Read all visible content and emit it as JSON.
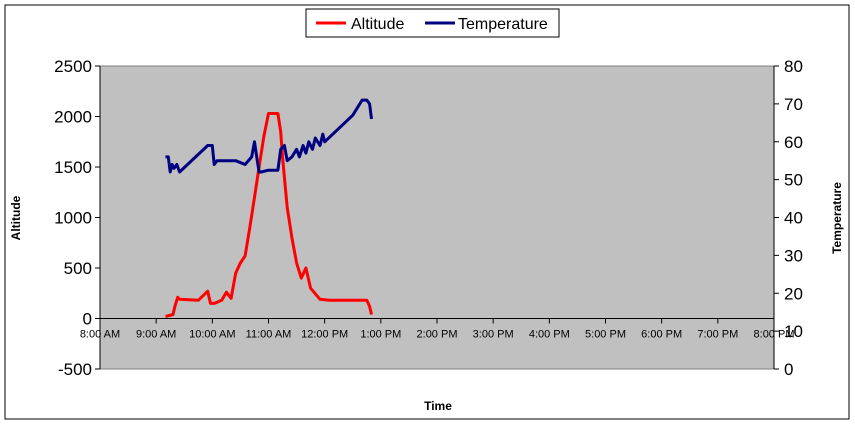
{
  "chart_data": {
    "type": "line",
    "xlabel": "Time",
    "ylabel": "Altitude",
    "y2label": "Temperature",
    "x_ticks": [
      "8:00 AM",
      "9:00 AM",
      "10:00 AM",
      "11:00 AM",
      "12:00 PM",
      "1:00 PM",
      "2:00 PM",
      "3:00 PM",
      "4:00 PM",
      "5:00 PM",
      "6:00 PM",
      "7:00 PM",
      "8:00 PM"
    ],
    "xlim": [
      "8:00 AM",
      "8:00 PM"
    ],
    "ylim": [
      -500,
      2500
    ],
    "y_ticks": [
      "-500",
      "0",
      "500",
      "1000",
      "1500",
      "2000",
      "2500"
    ],
    "y2lim": [
      0,
      80
    ],
    "y2_ticks": [
      "0",
      "10",
      "20",
      "30",
      "40",
      "50",
      "60",
      "70",
      "80"
    ],
    "grid": false,
    "legend_position": "top-center",
    "plot_background": "#c0c0c0",
    "series": [
      {
        "name": "Altitude",
        "axis": "left",
        "color": "#ff0000",
        "x": [
          "9:10 AM",
          "9:18 AM",
          "9:20 AM",
          "9:23 AM",
          "9:25 AM",
          "9:45 AM",
          "9:55 AM",
          "9:58 AM",
          "10:02 AM",
          "10:05 AM",
          "10:10 AM",
          "10:15 AM",
          "10:20 AM",
          "10:25 AM",
          "10:30 AM",
          "10:35 AM",
          "10:40 AM",
          "10:45 AM",
          "10:50 AM",
          "10:55 AM",
          "11:00 AM",
          "11:03 AM",
          "11:10 AM",
          "11:13 AM",
          "11:15 AM",
          "11:20 AM",
          "11:25 AM",
          "11:30 AM",
          "11:35 AM",
          "11:40 AM",
          "11:45 AM",
          "11:55 AM",
          "12:05 PM",
          "12:30 PM",
          "12:45 PM",
          "12:48 PM",
          "12:50 PM"
        ],
        "y": [
          20,
          40,
          120,
          210,
          190,
          180,
          270,
          150,
          150,
          160,
          180,
          260,
          200,
          450,
          550,
          620,
          900,
          1200,
          1500,
          1800,
          2030,
          2030,
          2030,
          1850,
          1600,
          1100,
          800,
          550,
          400,
          500,
          300,
          190,
          180,
          180,
          180,
          120,
          40
        ]
      },
      {
        "name": "Temperature",
        "axis": "right",
        "color": "#000080",
        "x": [
          "9:10 AM",
          "9:13 AM",
          "9:15 AM",
          "9:17 AM",
          "9:19 AM",
          "9:22 AM",
          "9:25 AM",
          "9:55 AM",
          "10:00 AM",
          "10:02 AM",
          "10:05 AM",
          "10:15 AM",
          "10:25 AM",
          "10:35 AM",
          "10:42 AM",
          "10:45 AM",
          "10:48 AM",
          "10:50 AM",
          "10:52 AM",
          "11:00 AM",
          "11:10 AM",
          "11:13 AM",
          "11:17 AM",
          "11:20 AM",
          "11:25 AM",
          "11:30 AM",
          "11:33 AM",
          "11:37 AM",
          "11:40 AM",
          "11:43 AM",
          "11:47 AM",
          "11:50 AM",
          "11:55 AM",
          "11:58 AM",
          "12:00 PM",
          "12:30 PM",
          "12:40 PM",
          "12:45 PM",
          "12:48 PM",
          "12:50 PM"
        ],
        "y": [
          56,
          56,
          52,
          54,
          53,
          54,
          52,
          59,
          59,
          54,
          55,
          55,
          55,
          54,
          56,
          60,
          55,
          52,
          52,
          52.5,
          52.5,
          58,
          59,
          55,
          56,
          58,
          56,
          59,
          57,
          60,
          58,
          61,
          59,
          62,
          60,
          67,
          71,
          71,
          70,
          66
        ]
      }
    ]
  }
}
